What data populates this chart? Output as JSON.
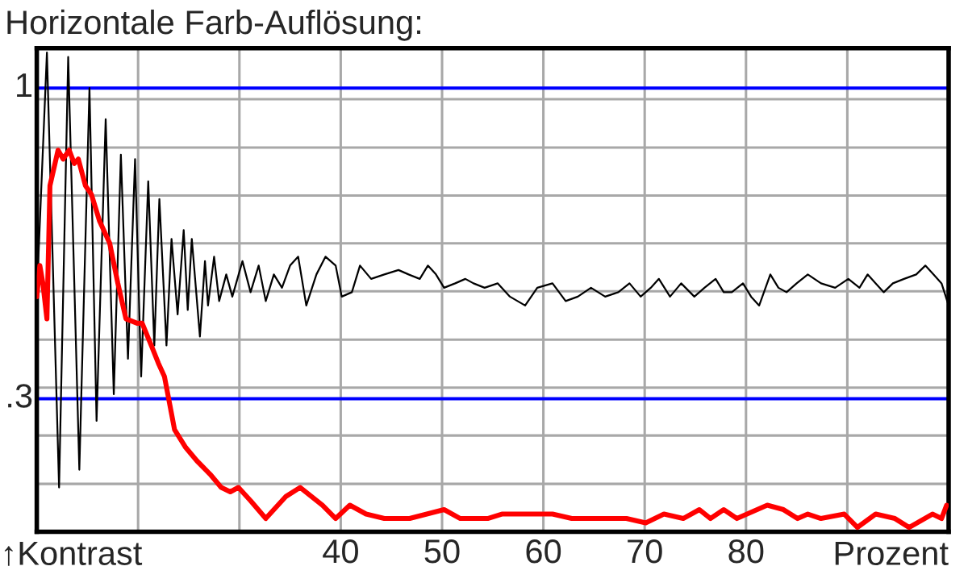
{
  "chart_data": {
    "type": "line",
    "title": "Horizontale Farb-Auflösung:",
    "xlabel": "Prozent",
    "annotations": [
      "↑Kontrast"
    ],
    "xlim": [
      10,
      100
    ],
    "ylim": [
      0,
      1.09
    ],
    "xticks": [
      {
        "value": 20,
        "label": null
      },
      {
        "value": 30,
        "label": null
      },
      40,
      50,
      60,
      70,
      80,
      {
        "value": 90,
        "label": null
      }
    ],
    "yticks": [
      {
        "value": 0.108,
        "label": null
      },
      {
        "value": 0.217,
        "label": null
      },
      {
        "value": 0.325,
        "label": null
      },
      {
        "value": 0.433,
        "label": null
      },
      {
        "value": 0.542,
        "label": null
      },
      {
        "value": 0.65,
        "label": null
      },
      {
        "value": 0.758,
        "label": null
      },
      {
        "value": 0.866,
        "label": null
      },
      {
        "value": 0.975,
        "label": null
      }
    ],
    "grid": true,
    "legend": false,
    "line_style": "solid",
    "ref_lines": [
      {
        "axis": "y",
        "value": 1,
        "label": "1",
        "color": "#0000ff"
      },
      {
        "axis": "y",
        "value": 0.3,
        "label": ".3",
        "color": "#0000ff"
      }
    ],
    "series": [
      {
        "color": "#000000",
        "x": [
          10.0,
          11.0,
          12.2,
          13.1,
          14.2,
          15.2,
          15.9,
          16.8,
          17.6,
          18.3,
          19.0,
          19.7,
          20.3,
          21.0,
          21.6,
          22.1,
          22.8,
          23.3,
          23.9,
          24.5,
          24.9,
          25.3,
          26.1,
          26.6,
          26.9,
          27.5,
          28.0,
          28.7,
          29.3,
          30.3,
          31.1,
          31.9,
          32.6,
          33.4,
          34.2,
          35.0,
          35.8,
          36.6,
          37.6,
          38.5,
          39.5,
          40.1,
          41.1,
          41.9,
          43.0,
          44.3,
          45.7,
          46.7,
          47.8,
          48.6,
          49.4,
          50.2,
          51.3,
          52.3,
          53.1,
          54.2,
          55.5,
          56.7,
          58.2,
          59.4,
          60.9,
          62.2,
          63.4,
          64.7,
          66.1,
          67.4,
          68.5,
          69.6,
          70.6,
          71.4,
          72.5,
          73.6,
          74.9,
          75.9,
          77.0,
          77.8,
          78.6,
          79.7,
          80.5,
          81.3,
          82.4,
          83.2,
          84.0,
          85.0,
          86.1,
          87.4,
          88.8,
          90.1,
          91.2,
          92.0,
          92.8,
          93.6,
          94.5,
          95.6,
          96.8,
          97.7,
          98.5,
          99.3,
          100.0
        ],
        "values": [
          0.53,
          1.08,
          0.1,
          1.07,
          0.14,
          1.0,
          0.25,
          0.93,
          0.31,
          0.85,
          0.39,
          0.84,
          0.35,
          0.79,
          0.42,
          0.75,
          0.42,
          0.66,
          0.49,
          0.68,
          0.5,
          0.66,
          0.44,
          0.61,
          0.51,
          0.62,
          0.52,
          0.58,
          0.53,
          0.61,
          0.54,
          0.6,
          0.52,
          0.58,
          0.55,
          0.6,
          0.62,
          0.51,
          0.58,
          0.62,
          0.6,
          0.53,
          0.54,
          0.6,
          0.57,
          0.58,
          0.59,
          0.58,
          0.57,
          0.6,
          0.58,
          0.55,
          0.56,
          0.57,
          0.56,
          0.55,
          0.56,
          0.53,
          0.51,
          0.55,
          0.56,
          0.52,
          0.53,
          0.55,
          0.53,
          0.54,
          0.56,
          0.53,
          0.55,
          0.57,
          0.53,
          0.56,
          0.53,
          0.55,
          0.57,
          0.54,
          0.54,
          0.56,
          0.53,
          0.51,
          0.58,
          0.55,
          0.54,
          0.56,
          0.58,
          0.56,
          0.55,
          0.57,
          0.55,
          0.58,
          0.56,
          0.54,
          0.56,
          0.57,
          0.58,
          0.6,
          0.58,
          0.56,
          0.51
        ]
      },
      {
        "color": "#ff0000",
        "x": [
          10.0,
          10.3,
          10.6,
          11.0,
          11.3,
          11.8,
          12.1,
          12.6,
          13.2,
          13.7,
          14.1,
          14.8,
          15.4,
          16.2,
          17.2,
          18.0,
          18.8,
          19.9,
          20.4,
          21.3,
          22.0,
          22.6,
          23.6,
          24.7,
          25.8,
          27.1,
          28.2,
          29.1,
          29.9,
          31.1,
          32.6,
          34.6,
          36.0,
          38.2,
          39.5,
          40.9,
          42.5,
          44.3,
          46.8,
          50.2,
          51.8,
          54.5,
          55.9,
          58.5,
          60.9,
          62.8,
          65.2,
          68.2,
          70.1,
          71.9,
          73.8,
          75.4,
          76.5,
          77.8,
          79.1,
          82.1,
          83.7,
          85.1,
          86.1,
          87.4,
          89.7,
          91.0,
          92.8,
          94.7,
          96.1,
          98.4,
          99.3,
          99.8
        ],
        "values": [
          0.53,
          0.6,
          0.56,
          0.48,
          0.78,
          0.83,
          0.86,
          0.84,
          0.86,
          0.83,
          0.84,
          0.78,
          0.76,
          0.7,
          0.65,
          0.56,
          0.48,
          0.47,
          0.47,
          0.42,
          0.38,
          0.35,
          0.23,
          0.19,
          0.16,
          0.13,
          0.1,
          0.09,
          0.1,
          0.07,
          0.03,
          0.08,
          0.1,
          0.06,
          0.03,
          0.06,
          0.04,
          0.03,
          0.03,
          0.05,
          0.03,
          0.03,
          0.04,
          0.04,
          0.04,
          0.03,
          0.03,
          0.03,
          0.02,
          0.04,
          0.03,
          0.05,
          0.03,
          0.05,
          0.03,
          0.06,
          0.05,
          0.03,
          0.04,
          0.03,
          0.04,
          0.01,
          0.04,
          0.03,
          0.01,
          0.04,
          0.03,
          0.06
        ]
      }
    ]
  }
}
